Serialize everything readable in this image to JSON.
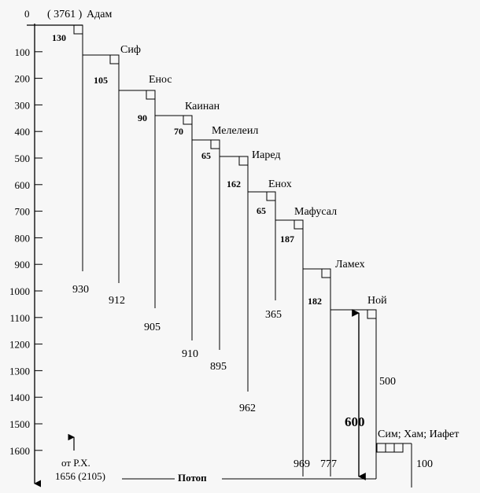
{
  "chart_data": {
    "type": "diagram",
    "axis": {
      "ticks": [
        "0",
        "100",
        "200",
        "300",
        "400",
        "500",
        "600",
        "700",
        "800",
        "900",
        "1000",
        "1100",
        "1200",
        "1300",
        "1400",
        "1500",
        "1600"
      ]
    },
    "header_year": "( 3761 )",
    "patriarchs": [
      {
        "name": "Адам",
        "begat_at": "130",
        "lifespan": "930"
      },
      {
        "name": "Сиф",
        "begat_at": "105",
        "lifespan": "912"
      },
      {
        "name": "Енос",
        "begat_at": "90",
        "lifespan": "905"
      },
      {
        "name": "Каинан",
        "begat_at": "70",
        "lifespan": "910"
      },
      {
        "name": "Мелелеил",
        "begat_at": "65",
        "lifespan": "895"
      },
      {
        "name": "Иаред",
        "begat_at": "162",
        "lifespan": "962"
      },
      {
        "name": "Енох",
        "begat_at": "65",
        "lifespan": "365"
      },
      {
        "name": "Мафусал",
        "begat_at": "187",
        "lifespan": "969"
      },
      {
        "name": "Ламех",
        "begat_at": "182",
        "lifespan": "777"
      },
      {
        "name": "Ной",
        "begat_at": "500",
        "lifespan": "600"
      },
      {
        "name": "Сим; Хам; Иафет",
        "begat_at": "",
        "lifespan": "100"
      }
    ],
    "flood_label": "Потоп",
    "era_note_line1": "от Р.Х.",
    "era_note_line2": "1656 (2105)"
  }
}
